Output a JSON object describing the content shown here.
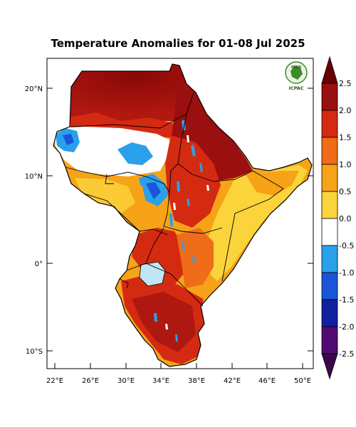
{
  "title": "Temperature Anomalies for 01-08 Jul 2025",
  "logo": {
    "top_text": "IGAD",
    "bottom_text": "ICPAC"
  },
  "map": {
    "lon_ticks": [
      "22°E",
      "26°E",
      "30°E",
      "34°E",
      "38°E",
      "42°E",
      "46°E",
      "50°E"
    ],
    "lat_ticks": [
      "20°N",
      "10°N",
      "0°",
      "10°S"
    ],
    "lon_range": [
      21,
      52
    ],
    "lat_range": [
      -12,
      23
    ]
  },
  "colorbar": {
    "labels": [
      "2.5",
      "2.0",
      "1.5",
      "1.0",
      "0.5",
      "0.0",
      "-0.5",
      "-1.0",
      "-1.5",
      "-2.0",
      "-2.5"
    ],
    "colors": {
      "dark_red_tip": "#6b0000",
      "c1": "#9a0f0f",
      "c2": "#d42a12",
      "c3": "#ef6d18",
      "c4": "#f6a318",
      "c5": "#fbd43c",
      "c6": "#ffffff",
      "c7": "#2ba0ea",
      "c8": "#1a55d8",
      "c9": "#1020a0",
      "c10": "#500c70",
      "purple_tip": "#3a0848"
    }
  }
}
